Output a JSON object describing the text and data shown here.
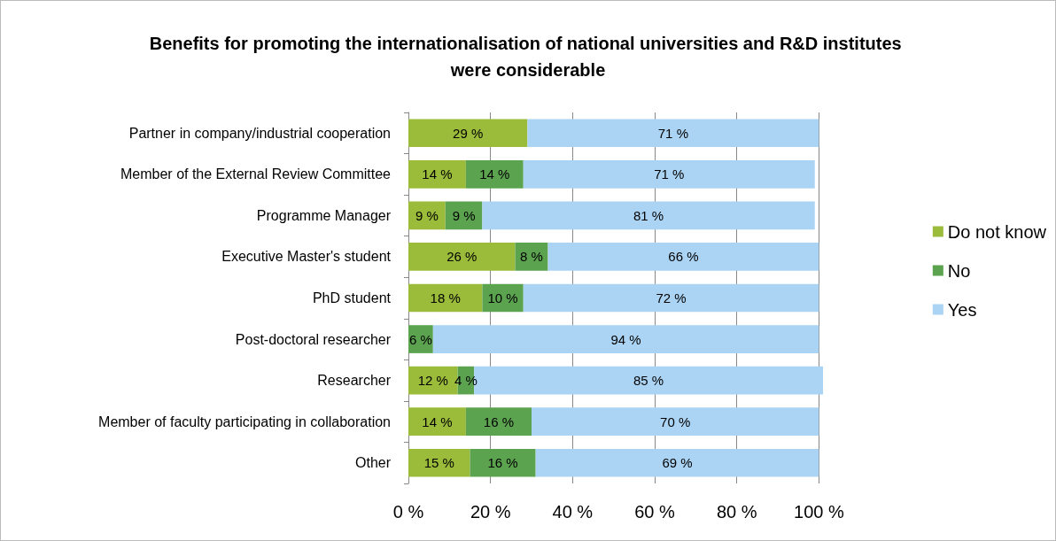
{
  "chart_data": {
    "type": "bar",
    "orientation": "horizontal",
    "stacked": true,
    "title": "Benefits for promoting the internationalisation of national universities and R&D institutes were considerable",
    "categories": [
      "Partner in company/industrial cooperation",
      "Member of the External Review Committee",
      "Programme Manager",
      "Executive Master's student",
      "PhD student",
      "Post-doctoral researcher",
      "Researcher",
      "Member of faculty participating in collaboration",
      "Other"
    ],
    "series": [
      {
        "name": "Do not know",
        "color": "#9bbb3a",
        "values": [
          29,
          14,
          9,
          26,
          18,
          null,
          12,
          14,
          15
        ],
        "value_labels": [
          "29 %",
          "14 %",
          "9 %",
          "26 %",
          "18 %",
          null,
          "12 %",
          "14 %",
          "15 %"
        ]
      },
      {
        "name": "No",
        "color": "#5ba34f",
        "values": [
          null,
          14,
          9,
          8,
          10,
          6,
          4,
          16,
          16
        ],
        "value_labels": [
          null,
          "14 %",
          "9 %",
          "8 %",
          "10 %",
          "6 %",
          "4 %",
          "16 %",
          "16 %"
        ]
      },
      {
        "name": "Yes",
        "color": "#abd4f4",
        "values": [
          71,
          71,
          81,
          66,
          72,
          94,
          85,
          70,
          69
        ],
        "value_labels": [
          "71 %",
          "71 %",
          "81 %",
          "66 %",
          "72 %",
          "94 %",
          "85 %",
          "70 %",
          "69 %"
        ]
      }
    ],
    "xlim": [
      0,
      101
    ],
    "xticks": [
      {
        "value": 0,
        "label": "0 %"
      },
      {
        "value": 20,
        "label": "20 %"
      },
      {
        "value": 40,
        "label": "40 %"
      },
      {
        "value": 60,
        "label": "60 %"
      },
      {
        "value": 80,
        "label": "80 %"
      },
      {
        "value": 100,
        "label": "100 %"
      }
    ],
    "grid": "x",
    "legend": "right"
  }
}
